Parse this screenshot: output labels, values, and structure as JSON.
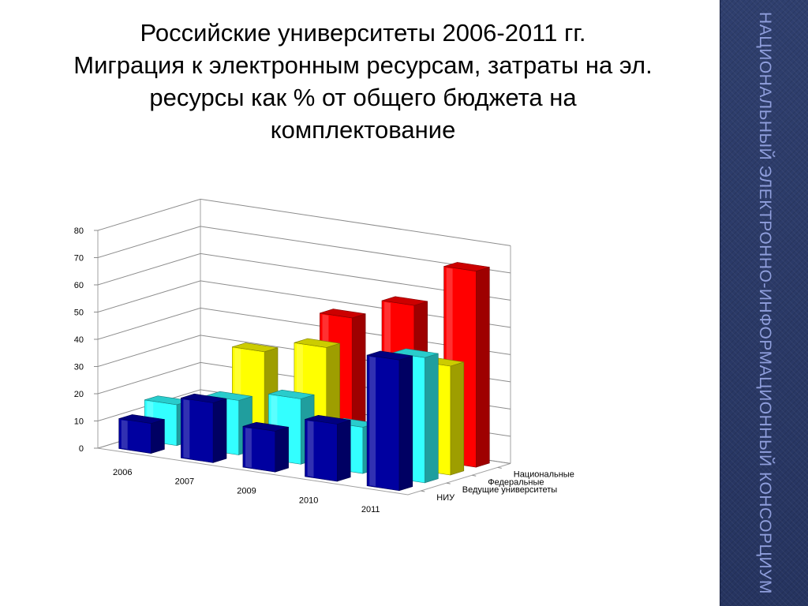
{
  "title": "Российские университеты 2006-2011 гг.\nМиграция к электронным ресурсам, затраты на эл. ресурсы как % от общего бюджета на комплектование",
  "sidebar_text": "Национальный электронно-информационный консорциум",
  "chart_data": {
    "type": "bar",
    "categories": [
      "2006",
      "2007",
      "2009",
      "2010",
      "2011"
    ],
    "series": [
      {
        "name": "Национальные",
        "color": "#ff0000",
        "values": [
          0,
          0,
          48,
          56,
          72
        ]
      },
      {
        "name": "Федеральные",
        "color": "#ffff00",
        "values": [
          0,
          35,
          40,
          10,
          40
        ]
      },
      {
        "name": "Ведущие университеты",
        "color": "#33ffff",
        "values": [
          15,
          20,
          24,
          17,
          46
        ]
      },
      {
        "name": "НИУ",
        "color": "#0000a0",
        "values": [
          11,
          22,
          15,
          21,
          48
        ]
      }
    ],
    "ylim": [
      0,
      80
    ],
    "yticks": [
      0,
      10,
      20,
      30,
      40,
      50,
      60,
      70,
      80
    ],
    "grid": true
  }
}
